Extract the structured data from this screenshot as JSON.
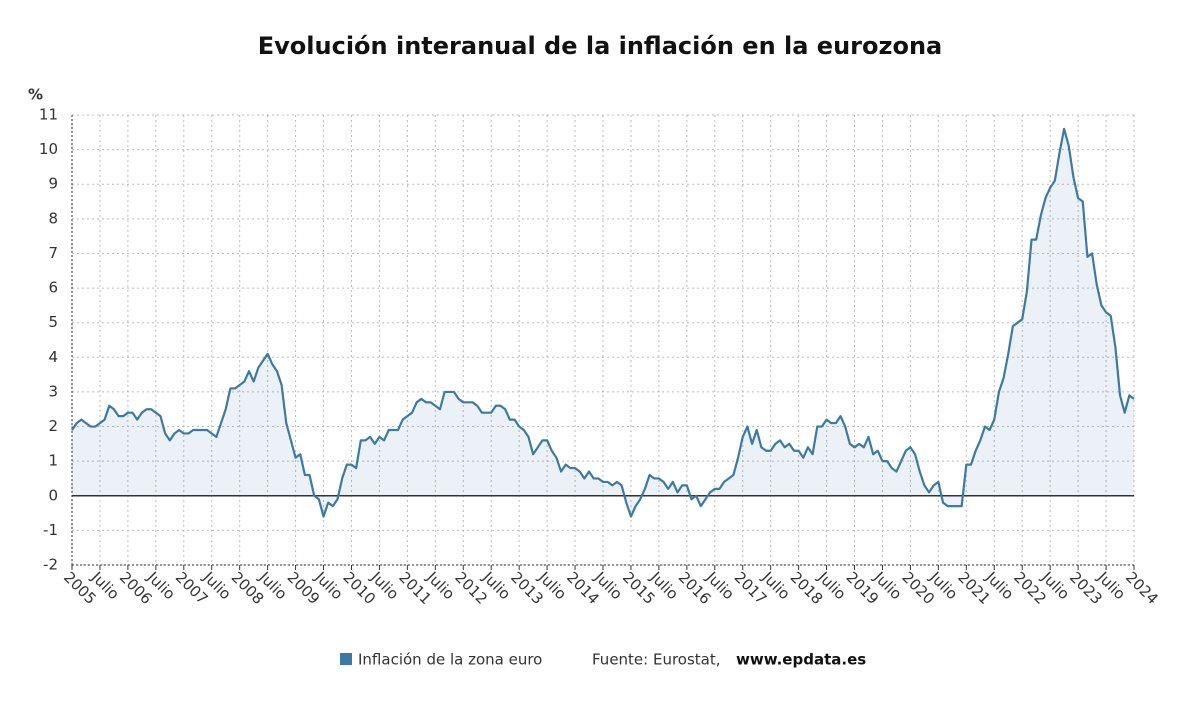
{
  "chart_data": {
    "type": "line",
    "title": "Evolución interanual de la inflación en la eurozona",
    "y_unit": "%",
    "categories": [
      "2005",
      null,
      null,
      null,
      null,
      null,
      "Julio",
      null,
      null,
      null,
      null,
      null,
      "2006",
      null,
      null,
      null,
      null,
      null,
      "Julio",
      null,
      null,
      null,
      null,
      null,
      "2007",
      null,
      null,
      null,
      null,
      null,
      "Julio",
      null,
      null,
      null,
      null,
      null,
      "2008",
      null,
      null,
      null,
      null,
      null,
      "Julio",
      null,
      null,
      null,
      null,
      null,
      "2009",
      null,
      null,
      null,
      null,
      null,
      "Julio",
      null,
      null,
      null,
      null,
      null,
      "2010",
      null,
      null,
      null,
      null,
      null,
      "Julio",
      null,
      null,
      null,
      null,
      null,
      "2011",
      null,
      null,
      null,
      null,
      null,
      "Julio",
      null,
      null,
      null,
      null,
      null,
      "2012",
      null,
      null,
      null,
      null,
      null,
      "Julio",
      null,
      null,
      null,
      null,
      null,
      "2013",
      null,
      null,
      null,
      null,
      null,
      "Julio",
      null,
      null,
      null,
      null,
      null,
      "2014",
      null,
      null,
      null,
      null,
      null,
      "Julio",
      null,
      null,
      null,
      null,
      null,
      "2015",
      null,
      null,
      null,
      null,
      null,
      "Julio",
      null,
      null,
      null,
      null,
      null,
      "2016",
      null,
      null,
      null,
      null,
      null,
      "Julio",
      null,
      null,
      null,
      null,
      null,
      "2017",
      null,
      null,
      null,
      null,
      null,
      "Julio",
      null,
      null,
      null,
      null,
      null,
      "2018",
      null,
      null,
      null,
      null,
      null,
      "Julio",
      null,
      null,
      null,
      null,
      null,
      "2019",
      null,
      null,
      null,
      null,
      null,
      "Julio",
      null,
      null,
      null,
      null,
      null,
      "2020",
      null,
      null,
      null,
      null,
      null,
      "Julio",
      null,
      null,
      null,
      null,
      null,
      "2021",
      null,
      null,
      null,
      null,
      null,
      "Julio",
      null,
      null,
      null,
      null,
      null,
      "2022",
      null,
      null,
      null,
      null,
      null,
      "Julio",
      null,
      null,
      null,
      null,
      null,
      "2023",
      null,
      null,
      null,
      null,
      null,
      "Julio",
      null,
      null,
      null,
      null,
      null,
      "2024"
    ],
    "series": [
      {
        "name": "Inflación de la zona euro",
        "color": "#3b7aa6",
        "values": [
          1.9,
          2.1,
          2.2,
          2.1,
          2.0,
          2.0,
          2.1,
          2.2,
          2.6,
          2.5,
          2.3,
          2.3,
          2.4,
          2.4,
          2.2,
          2.4,
          2.5,
          2.5,
          2.4,
          2.3,
          1.8,
          1.6,
          1.8,
          1.9,
          1.8,
          1.8,
          1.9,
          1.9,
          1.9,
          1.9,
          1.8,
          1.7,
          2.1,
          2.5,
          3.1,
          3.1,
          3.2,
          3.3,
          3.6,
          3.3,
          3.7,
          3.9,
          4.1,
          3.8,
          3.6,
          3.2,
          2.1,
          1.6,
          1.1,
          1.2,
          0.6,
          0.6,
          0.0,
          -0.1,
          -0.6,
          -0.2,
          -0.3,
          -0.1,
          0.5,
          0.9,
          0.9,
          0.8,
          1.6,
          1.6,
          1.7,
          1.5,
          1.7,
          1.6,
          1.9,
          1.9,
          1.9,
          2.2,
          2.3,
          2.4,
          2.7,
          2.8,
          2.7,
          2.7,
          2.6,
          2.5,
          3.0,
          3.0,
          3.0,
          2.8,
          2.7,
          2.7,
          2.7,
          2.6,
          2.4,
          2.4,
          2.4,
          2.6,
          2.6,
          2.5,
          2.2,
          2.2,
          2.0,
          1.9,
          1.7,
          1.2,
          1.4,
          1.6,
          1.6,
          1.3,
          1.1,
          0.7,
          0.9,
          0.8,
          0.8,
          0.7,
          0.5,
          0.7,
          0.5,
          0.5,
          0.4,
          0.4,
          0.3,
          0.4,
          0.3,
          -0.2,
          -0.6,
          -0.3,
          -0.1,
          0.2,
          0.6,
          0.5,
          0.5,
          0.4,
          0.2,
          0.4,
          0.1,
          0.3,
          0.3,
          -0.1,
          0.0,
          -0.3,
          -0.1,
          0.1,
          0.2,
          0.2,
          0.4,
          0.5,
          0.6,
          1.1,
          1.7,
          2.0,
          1.5,
          1.9,
          1.4,
          1.3,
          1.3,
          1.5,
          1.6,
          1.4,
          1.5,
          1.3,
          1.3,
          1.1,
          1.4,
          1.2,
          2.0,
          2.0,
          2.2,
          2.1,
          2.1,
          2.3,
          2.0,
          1.5,
          1.4,
          1.5,
          1.4,
          1.7,
          1.2,
          1.3,
          1.0,
          1.0,
          0.8,
          0.7,
          1.0,
          1.3,
          1.4,
          1.2,
          0.7,
          0.3,
          0.1,
          0.3,
          0.4,
          -0.2,
          -0.3,
          -0.3,
          -0.3,
          -0.3,
          0.9,
          0.9,
          1.3,
          1.6,
          2.0,
          1.9,
          2.2,
          3.0,
          3.4,
          4.1,
          4.9,
          5.0,
          5.1,
          5.9,
          7.4,
          7.4,
          8.1,
          8.6,
          8.9,
          9.1,
          9.9,
          10.6,
          10.1,
          9.2,
          8.6,
          8.5,
          6.9,
          7.0,
          6.1,
          5.5,
          5.3,
          5.2,
          4.3,
          2.9,
          2.4,
          2.9,
          2.8
        ]
      }
    ],
    "ylim": [
      -2,
      11
    ],
    "yticks": [
      -2,
      -1,
      0,
      1,
      2,
      3,
      4,
      5,
      6,
      7,
      8,
      9,
      10,
      11
    ],
    "grid": true,
    "source": "Fuente: Eurostat,",
    "source_site": "www.epdata.es"
  }
}
